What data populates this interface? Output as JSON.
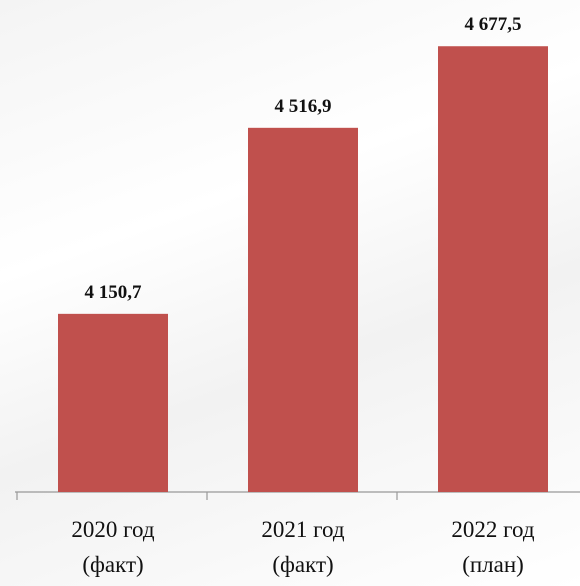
{
  "chart_data": {
    "type": "bar",
    "categories": [
      "2020 год\n(факт)",
      "2021 год\n(факт)",
      "2022 год\n(план)"
    ],
    "values": [
      4150.7,
      4516.9,
      4677.5
    ],
    "value_labels": [
      "4 150,7",
      "4 516,9",
      "4 677,5"
    ],
    "color": "#c0504d",
    "ylim": [
      3800,
      4750
    ]
  }
}
